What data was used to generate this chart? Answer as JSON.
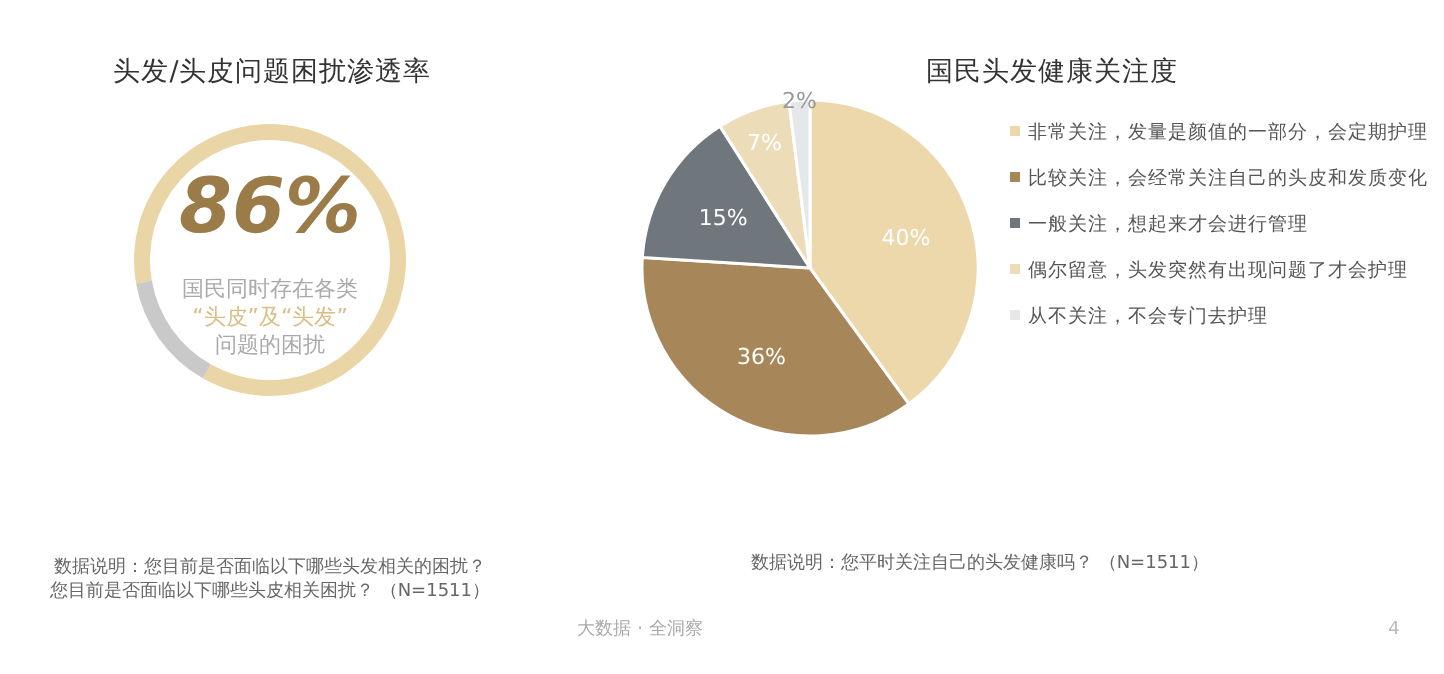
{
  "chart_data": [
    {
      "type": "donut",
      "title": "头发/头皮问题困扰渗透率",
      "categories": [
        null,
        null
      ],
      "values": [
        86,
        14
      ],
      "colors": [
        "#ead5a6",
        "#c9c9c9"
      ],
      "value_labels": [
        "86%",
        null
      ],
      "annotations": [
        "国民同时存在各类",
        "“头皮”及“头发”",
        "问题的困扰",
        "数据说明：您目前是否面临以下哪些头发相关的困扰？",
        "您目前是否面临以下哪些头皮相关困扰？ （N=1511）"
      ]
    },
    {
      "type": "pie",
      "title": "国民头发健康关注度",
      "categories": [
        "非常关注，发量是颜值的一部分，会定期护理",
        "比较关注，会经常关注自己的头皮和发质变化",
        "一般关注，想起来才会进行管理",
        "偶尔留意，头发突然有出现问题了才会护理",
        "从不关注，不会专门去护理"
      ],
      "values": [
        40,
        36,
        15,
        7,
        2
      ],
      "colors": [
        "#ecd8ab",
        "#a7875a",
        "#6f777d",
        "#ecdcb8",
        "#e5e8e8"
      ],
      "value_labels": [
        "40%",
        "36%",
        "15%",
        "7%",
        "2%"
      ],
      "legend": "right",
      "annotations": [
        "数据说明：您平时关注自己的头发健康吗？ （N=1511）",
        "大数据 · 全洞察",
        "4"
      ]
    }
  ]
}
